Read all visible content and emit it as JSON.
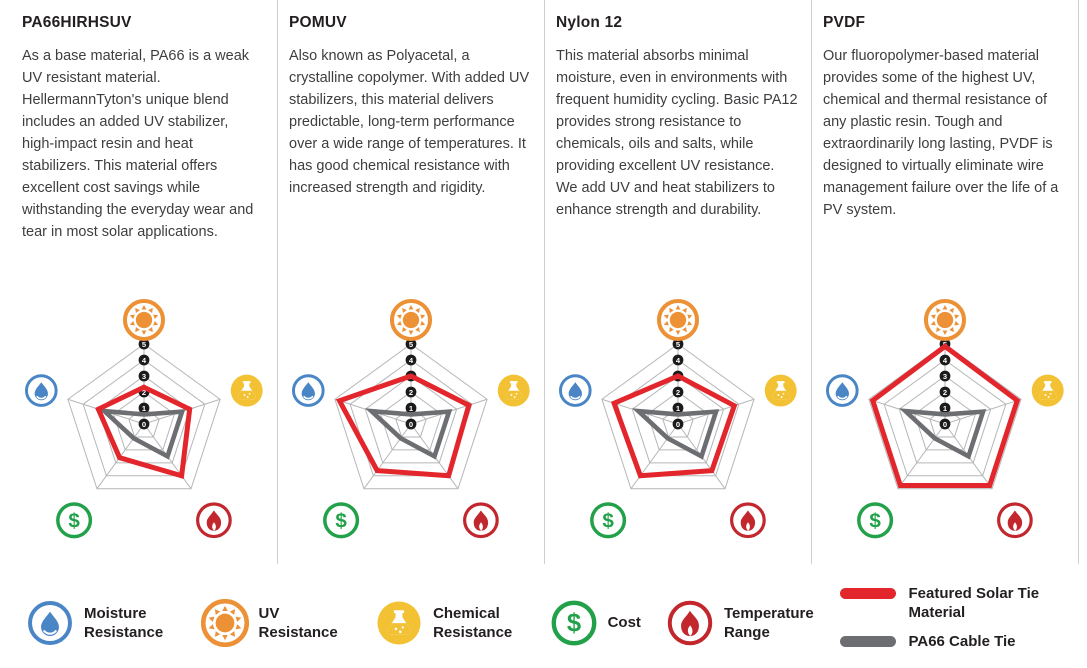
{
  "colors": {
    "featured": "#e2262c",
    "reference": "#6d6e71",
    "grid": "#b5b6b8",
    "marker": "#1d1a1b",
    "sun": "#ec9135",
    "drop": "#4a85c5",
    "flask": "#f2c234",
    "dollar": "#22a14a",
    "flame": "#c2272e",
    "heading": "#231f20",
    "body_text": "#3e3e40",
    "divider": "#cdced0"
  },
  "materials": [
    {
      "name": "PA66HIRHSUV",
      "description": "As a base material, PA66 is a weak UV resistant material. HellermannTyton's unique blend includes an added UV stabilizer, high-impact resin and heat stabilizers. This material offers excellent cost savings while withstanding the everyday wear and tear in most solar applications."
    },
    {
      "name": "POMUV",
      "description": "Also known as Polyacetal, a crystalline copolymer. With added UV stabilizers, this material delivers predictable, long-term performance over a wide range of temperatures. It has good chemical resistance with increased strength and rigidity."
    },
    {
      "name": "Nylon 12",
      "description": "This material absorbs minimal moisture, even in environments with frequent humidity cycling. Basic PA12 provides strong resistance to chemicals, oils and salts, while providing excellent UV resistance. We add UV and heat stabilizers to enhance strength and durability."
    },
    {
      "name": "PVDF",
      "description": "Our fluoropolymer-based material provides some of the highest UV, chemical and thermal resistance of any plastic resin. Tough and extraordinarily long lasting, PVDF is designed to virtually eliminate wire management failure over the life of a PV system."
    }
  ],
  "chart_data": [
    {
      "type": "radar",
      "title": "PA66HIRHSUV",
      "axes": [
        "UV Resistance",
        "Chemical Resistance",
        "Temperature Range",
        "Cost",
        "Moisture Resistance"
      ],
      "axis_icons": [
        "sun-icon",
        "flask-icon",
        "flame-icon",
        "dollar-icon",
        "drop-icon"
      ],
      "scale": {
        "min": 0,
        "max": 5,
        "ticks": [
          0,
          1,
          2,
          3,
          4,
          5
        ]
      },
      "series": [
        {
          "name": "Featured Solar Tie Material",
          "color": "#e2262c",
          "values": [
            2.3,
            3.0,
            4.0,
            2.6,
            3.0
          ]
        },
        {
          "name": "PA66 Cable Tie",
          "color": "#6d6e71",
          "values": [
            0.6,
            2.5,
            2.5,
            1.1,
            2.6
          ]
        }
      ]
    },
    {
      "type": "radar",
      "title": "POMUV",
      "axes": [
        "UV Resistance",
        "Chemical Resistance",
        "Temperature Range",
        "Cost",
        "Moisture Resistance"
      ],
      "axis_icons": [
        "sun-icon",
        "flask-icon",
        "flame-icon",
        "dollar-icon",
        "drop-icon"
      ],
      "scale": {
        "min": 0,
        "max": 5,
        "ticks": [
          0,
          1,
          2,
          3,
          4,
          5
        ]
      },
      "series": [
        {
          "name": "Featured Solar Tie Material",
          "color": "#e2262c",
          "values": [
            3.0,
            3.8,
            4.0,
            3.6,
            4.7
          ]
        },
        {
          "name": "PA66 Cable Tie",
          "color": "#6d6e71",
          "values": [
            0.6,
            2.5,
            2.5,
            1.1,
            2.6
          ]
        }
      ]
    },
    {
      "type": "radar",
      "title": "Nylon 12",
      "axes": [
        "UV Resistance",
        "Chemical Resistance",
        "Temperature Range",
        "Cost",
        "Moisture Resistance"
      ],
      "axis_icons": [
        "sun-icon",
        "flask-icon",
        "flame-icon",
        "dollar-icon",
        "drop-icon"
      ],
      "scale": {
        "min": 0,
        "max": 5,
        "ticks": [
          0,
          1,
          2,
          3,
          4,
          5
        ]
      },
      "series": [
        {
          "name": "Featured Solar Tie Material",
          "color": "#e2262c",
          "values": [
            3.0,
            3.7,
            3.6,
            4.0,
            4.2
          ]
        },
        {
          "name": "PA66 Cable Tie",
          "color": "#6d6e71",
          "values": [
            0.6,
            2.5,
            2.5,
            1.1,
            2.6
          ]
        }
      ]
    },
    {
      "type": "radar",
      "title": "PVDF",
      "axes": [
        "UV Resistance",
        "Chemical Resistance",
        "Temperature Range",
        "Cost",
        "Moisture Resistance"
      ],
      "axis_icons": [
        "sun-icon",
        "flask-icon",
        "flame-icon",
        "dollar-icon",
        "drop-icon"
      ],
      "scale": {
        "min": 0,
        "max": 5,
        "ticks": [
          0,
          1,
          2,
          3,
          4,
          5
        ]
      },
      "series": [
        {
          "name": "Featured Solar Tie Material",
          "color": "#e2262c",
          "values": [
            4.85,
            4.75,
            4.75,
            4.75,
            4.75
          ]
        },
        {
          "name": "PA66 Cable Tie",
          "color": "#6d6e71",
          "values": [
            0.6,
            2.5,
            2.5,
            1.1,
            2.6
          ]
        }
      ]
    }
  ],
  "legend": {
    "axis_items": [
      {
        "label": "Moisture Resistance",
        "icon": "drop-icon"
      },
      {
        "label": "UV Resistance",
        "icon": "sun-icon"
      },
      {
        "label": "Chemical Resistance",
        "icon": "flask-icon"
      },
      {
        "label": "Cost",
        "icon": "dollar-icon"
      },
      {
        "label": "Temperature Range",
        "icon": "flame-icon"
      }
    ],
    "series_items": [
      {
        "label": "Featured Solar Tie Material",
        "color": "#e2262c"
      },
      {
        "label": "PA66 Cable Tie",
        "color": "#6d6e71"
      }
    ]
  }
}
